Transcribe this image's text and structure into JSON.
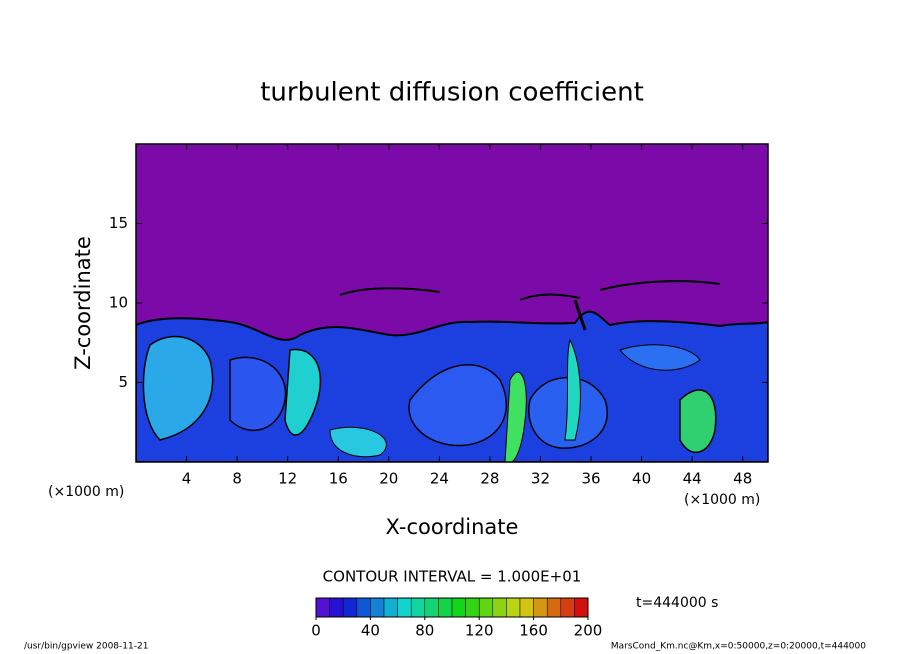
{
  "chart_data": {
    "type": "contour",
    "title": "turbulent diffusion coefficient",
    "xlabel": "X-coordinate",
    "ylabel": "Z-coordinate",
    "x_unit_label": "(×1000 m)",
    "xlim": [
      0,
      50
    ],
    "xticks": [
      4,
      8,
      12,
      16,
      20,
      24,
      28,
      32,
      36,
      40,
      44,
      48
    ],
    "ylim": [
      0,
      20
    ],
    "yticks": [
      5,
      10,
      15
    ],
    "background_color": "#7b0aa8",
    "colorbar": {
      "lim": [
        0,
        200
      ],
      "ticks": [
        0,
        40,
        80,
        120,
        160,
        200
      ]
    },
    "contour_interval_label": "CONTOUR INTERVAL = 1.000E+01",
    "time_label": "t=444000 s",
    "footer_left": "/usr/bin/gpview   2008-11-21",
    "footer_right": "MarsCond_Km.nc@Km,x=0:50000,z=0:20000,t=444000"
  }
}
